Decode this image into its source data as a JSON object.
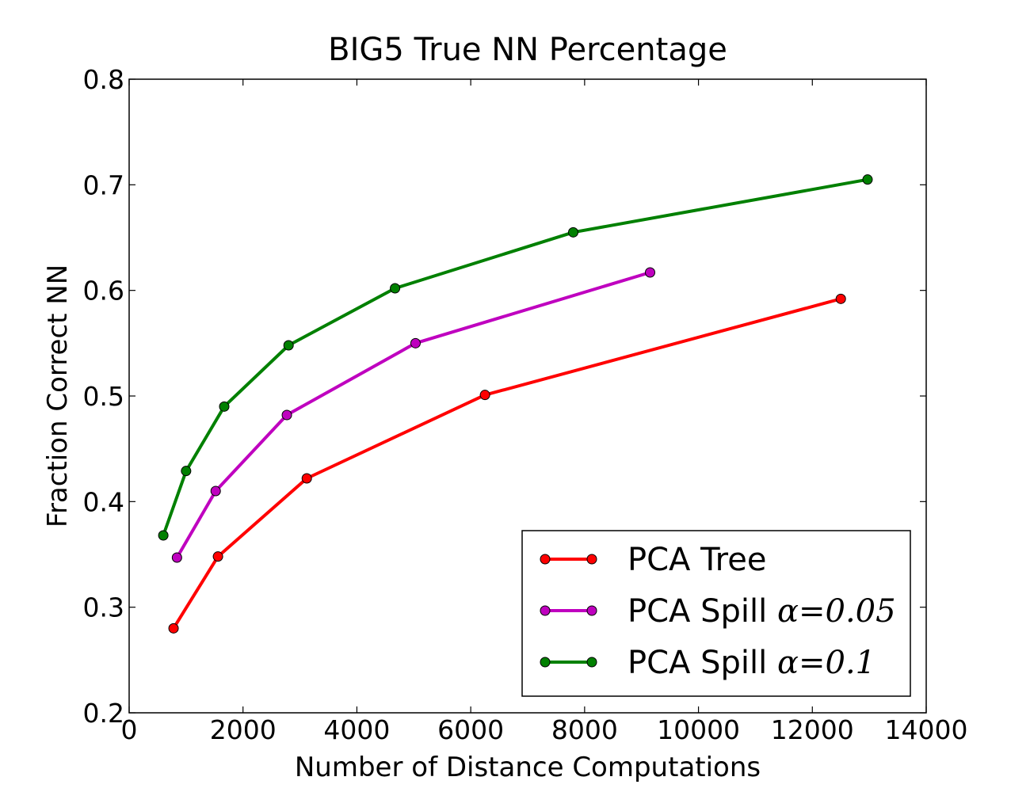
{
  "chart_data": {
    "type": "line",
    "title": "BIG5 True NN Percentage",
    "xlabel": "Number of Distance Computations",
    "ylabel": "Fraction Correct NN",
    "xlim": [
      0,
      14000
    ],
    "ylim": [
      0.2,
      0.8
    ],
    "xticks": [
      0,
      2000,
      4000,
      6000,
      8000,
      10000,
      12000,
      14000
    ],
    "xtick_labels": [
      "0",
      "2000",
      "4000",
      "6000",
      "8000",
      "10000",
      "12000",
      "14000"
    ],
    "yticks": [
      0.2,
      0.3,
      0.4,
      0.5,
      0.6,
      0.7,
      0.8
    ],
    "ytick_labels": [
      "0.2",
      "0.3",
      "0.4",
      "0.5",
      "0.6",
      "0.7",
      "0.8"
    ],
    "grid": false,
    "legend_position": "lower-right",
    "series": [
      {
        "name": "PCA Tree",
        "name_text": "PCA Tree",
        "name_math": "",
        "color": "#ff0000",
        "x": [
          780,
          1560,
          3120,
          6250,
          12500
        ],
        "y": [
          0.28,
          0.348,
          0.422,
          0.501,
          0.592
        ]
      },
      {
        "name": "PCA Spill α=0.05",
        "name_text": "PCA Spill",
        "name_math": "α=0.05",
        "color": "#bf00bf",
        "x": [
          840,
          1520,
          2770,
          5030,
          9150
        ],
        "y": [
          0.347,
          0.41,
          0.482,
          0.55,
          0.617
        ]
      },
      {
        "name": "PCA Spill α=0.1",
        "name_text": "PCA Spill",
        "name_math": "α=0.1",
        "color": "#008000",
        "x": [
          600,
          1000,
          1670,
          2800,
          4670,
          7800,
          12970
        ],
        "y": [
          0.368,
          0.429,
          0.49,
          0.548,
          0.602,
          0.655,
          0.705
        ]
      }
    ]
  }
}
